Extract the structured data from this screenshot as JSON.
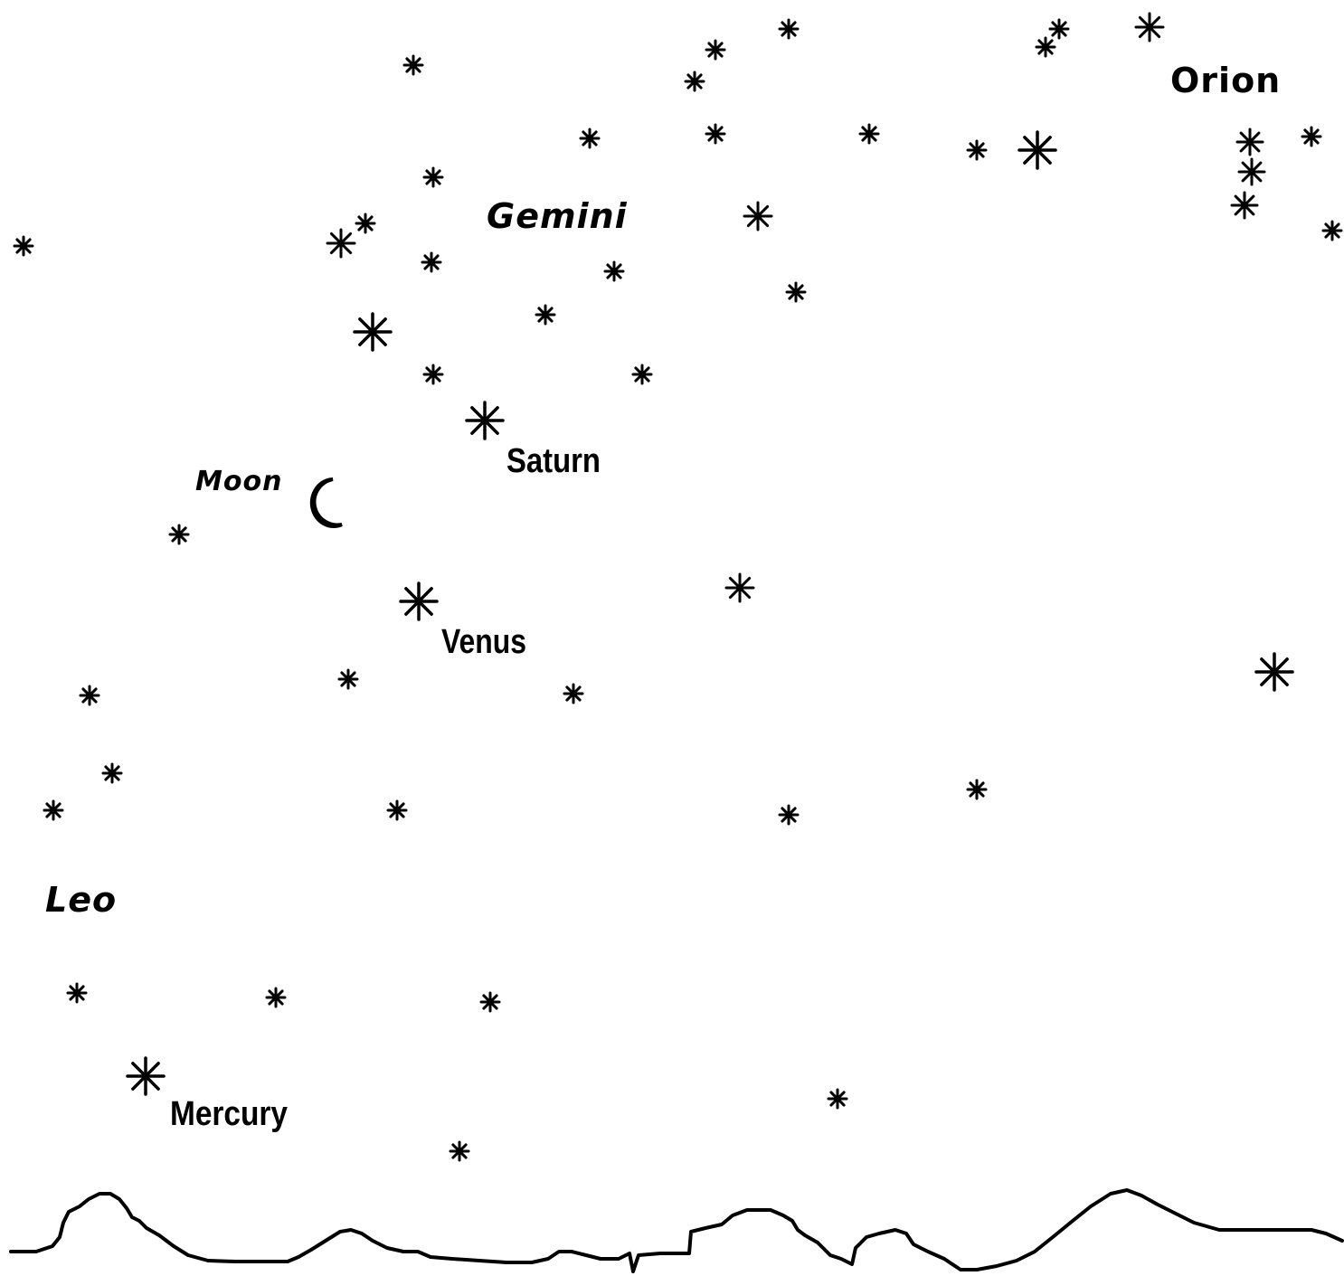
{
  "labels": {
    "orion": "Orion",
    "gemini": "Gemini",
    "saturn": "Saturn",
    "moon": "Moon",
    "venus": "Venus",
    "leo": "Leo",
    "mercury": "Mercury"
  },
  "colors": {
    "ink": "#000000",
    "background": "#ffffff"
  },
  "icons": {
    "star": "asterisk-star-icon",
    "moon": "crescent-moon-icon"
  }
}
